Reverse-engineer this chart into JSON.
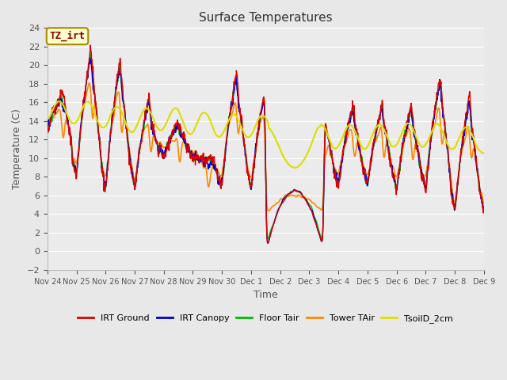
{
  "title": "Surface Temperatures",
  "ylabel": "Temperature (C)",
  "xlabel": "Time",
  "annotation_text": "TZ_irt",
  "annotation_bg": "#ffffcc",
  "annotation_border": "#aa8800",
  "ylim": [
    -2,
    24
  ],
  "yticks": [
    -2,
    0,
    2,
    4,
    6,
    8,
    10,
    12,
    14,
    16,
    18,
    20,
    22,
    24
  ],
  "fig_bg": "#e8e8e8",
  "plot_bg": "#ebebeb",
  "grid_color": "#ffffff",
  "series": [
    {
      "label": "IRT Ground",
      "color": "#dd0000"
    },
    {
      "label": "IRT Canopy",
      "color": "#0000cc"
    },
    {
      "label": "Floor Tair",
      "color": "#00bb00"
    },
    {
      "label": "Tower TAir",
      "color": "#ff8800"
    },
    {
      "label": "TsoilD_2cm",
      "color": "#dddd00"
    }
  ],
  "x_tick_labels": [
    "Nov 24",
    "Nov 25",
    "Nov 26",
    "Nov 27",
    "Nov 28",
    "Nov 29",
    "Nov 30",
    "Dec 1",
    "Dec 2",
    "Dec 3",
    "Dec 4",
    "Dec 5",
    "Dec 6",
    "Dec 7",
    "Dec 8",
    "Dec 9"
  ],
  "num_days": 15
}
